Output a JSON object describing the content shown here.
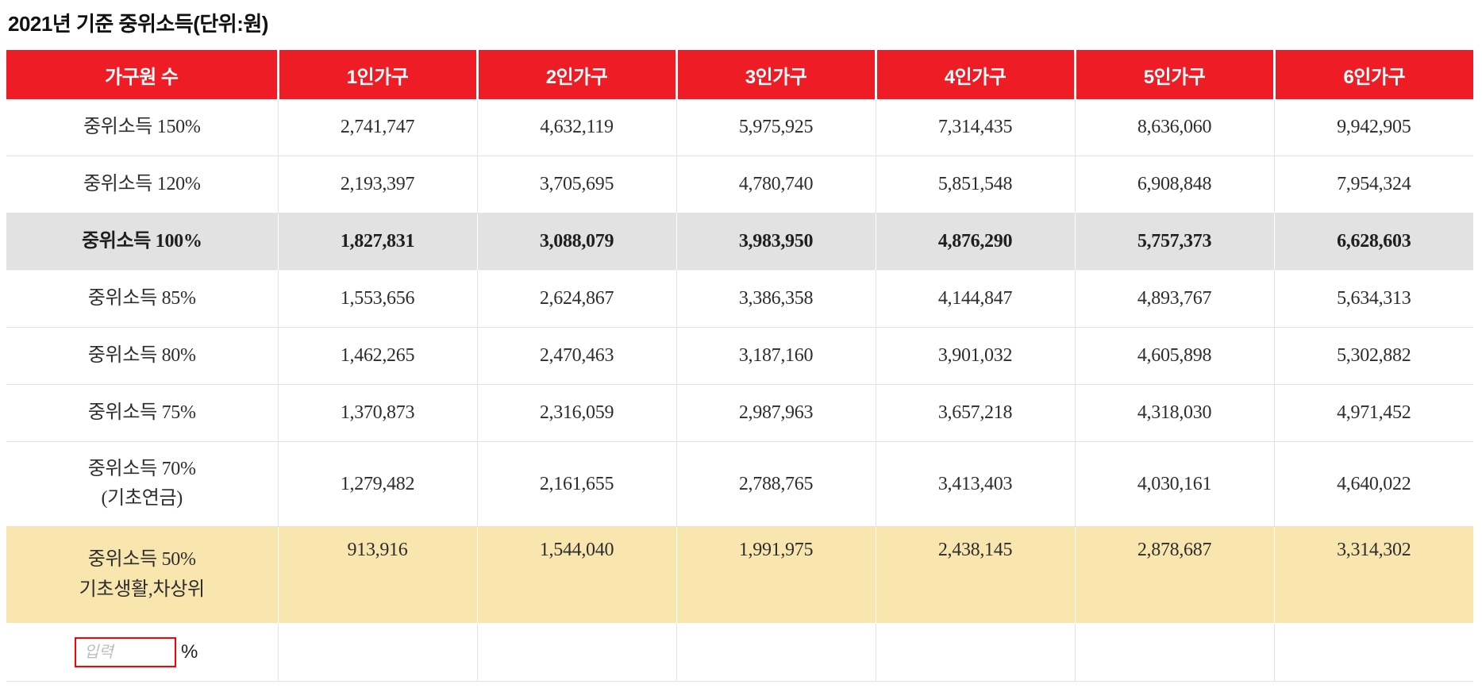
{
  "title": "2021년 기준 중위소득(단위:원)",
  "colors": {
    "header_bg": "#ee1c25",
    "header_text": "#ffffff",
    "highlight_gray_row": "#e2e2e2",
    "highlight_yellow_row": "#f8e6ae",
    "input_border": "#ff0000",
    "row_border": "#e3e3e3"
  },
  "table": {
    "columns": [
      "가구원 수",
      "1인가구",
      "2인가구",
      "3인가구",
      "4인가구",
      "5인가구",
      "6인가구"
    ],
    "rows": [
      {
        "label": "중위소득 150%",
        "label2": "",
        "highlight": "none",
        "values": [
          "2,741,747",
          "4,632,119",
          "5,975,925",
          "7,314,435",
          "8,636,060",
          "9,942,905"
        ]
      },
      {
        "label": "중위소득 120%",
        "label2": "",
        "highlight": "none",
        "values": [
          "2,193,397",
          "3,705,695",
          "4,780,740",
          "5,851,548",
          "6,908,848",
          "7,954,324"
        ]
      },
      {
        "label": "중위소득 100%",
        "label2": "",
        "highlight": "gray",
        "values": [
          "1,827,831",
          "3,088,079",
          "3,983,950",
          "4,876,290",
          "5,757,373",
          "6,628,603"
        ]
      },
      {
        "label": "중위소득 85%",
        "label2": "",
        "highlight": "none",
        "values": [
          "1,553,656",
          "2,624,867",
          "3,386,358",
          "4,144,847",
          "4,893,767",
          "5,634,313"
        ]
      },
      {
        "label": "중위소득 80%",
        "label2": "",
        "highlight": "none",
        "values": [
          "1,462,265",
          "2,470,463",
          "3,187,160",
          "3,901,032",
          "4,605,898",
          "5,302,882"
        ]
      },
      {
        "label": "중위소득 75%",
        "label2": "",
        "highlight": "none",
        "values": [
          "1,370,873",
          "2,316,059",
          "2,987,963",
          "3,657,218",
          "4,318,030",
          "4,971,452"
        ]
      },
      {
        "label": "중위소득 70%",
        "label2": "(기초연금)",
        "highlight": "none",
        "values": [
          "1,279,482",
          "2,161,655",
          "2,788,765",
          "3,413,403",
          "4,030,161",
          "4,640,022"
        ]
      },
      {
        "label": "중위소득 50%",
        "label2": "기초생활,차상위",
        "highlight": "yellow",
        "values": [
          "913,916",
          "1,544,040",
          "1,991,975",
          "2,438,145",
          "2,878,687",
          "3,314,302"
        ]
      }
    ],
    "input_row": {
      "placeholder": "입력",
      "value": "",
      "unit": "%"
    }
  }
}
